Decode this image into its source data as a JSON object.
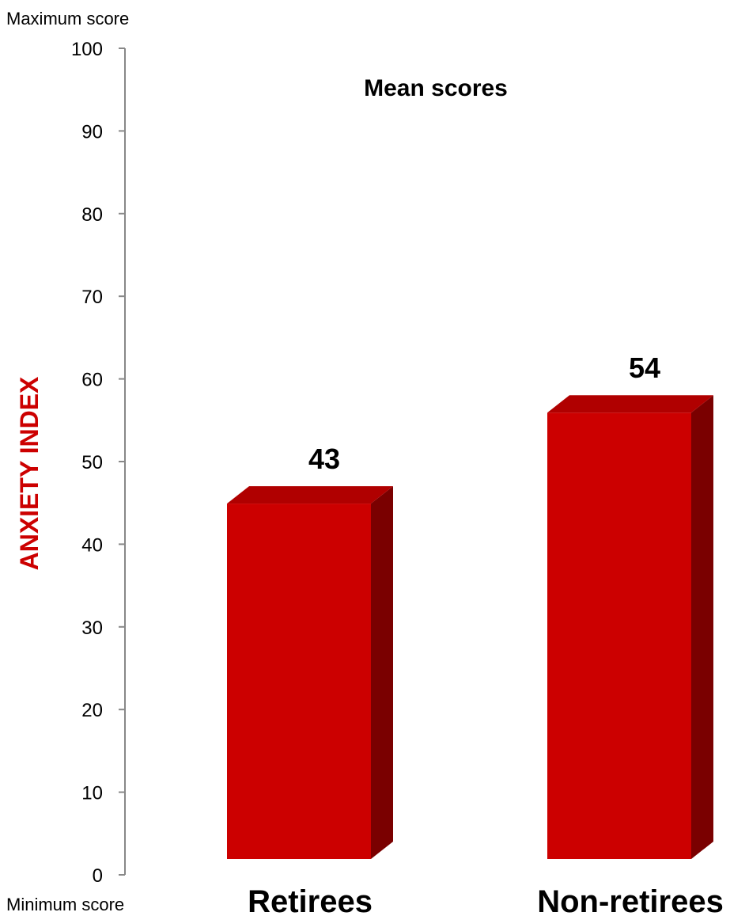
{
  "chart_data": {
    "type": "bar",
    "title": "Mean scores",
    "ylabel": "ANXIETY INDEX",
    "xlabel": "",
    "ylim": [
      0,
      100
    ],
    "yticks": [
      "0",
      "10",
      "20",
      "30",
      "40",
      "50",
      "60",
      "70",
      "80",
      "90",
      "100"
    ],
    "y_max_note": "Maximum score",
    "y_min_note": "Minimum score",
    "categories": [
      "Retirees",
      "Non-retirees"
    ],
    "values": [
      43,
      54
    ],
    "value_labels": [
      "43",
      "54"
    ],
    "grid": false,
    "bar_style": "3d",
    "colors": {
      "bar_front": "#cc0000",
      "bar_top": "#b00000",
      "bar_side": "#7a0000",
      "ylabel": "#cc0000",
      "axis": "#888888"
    }
  }
}
